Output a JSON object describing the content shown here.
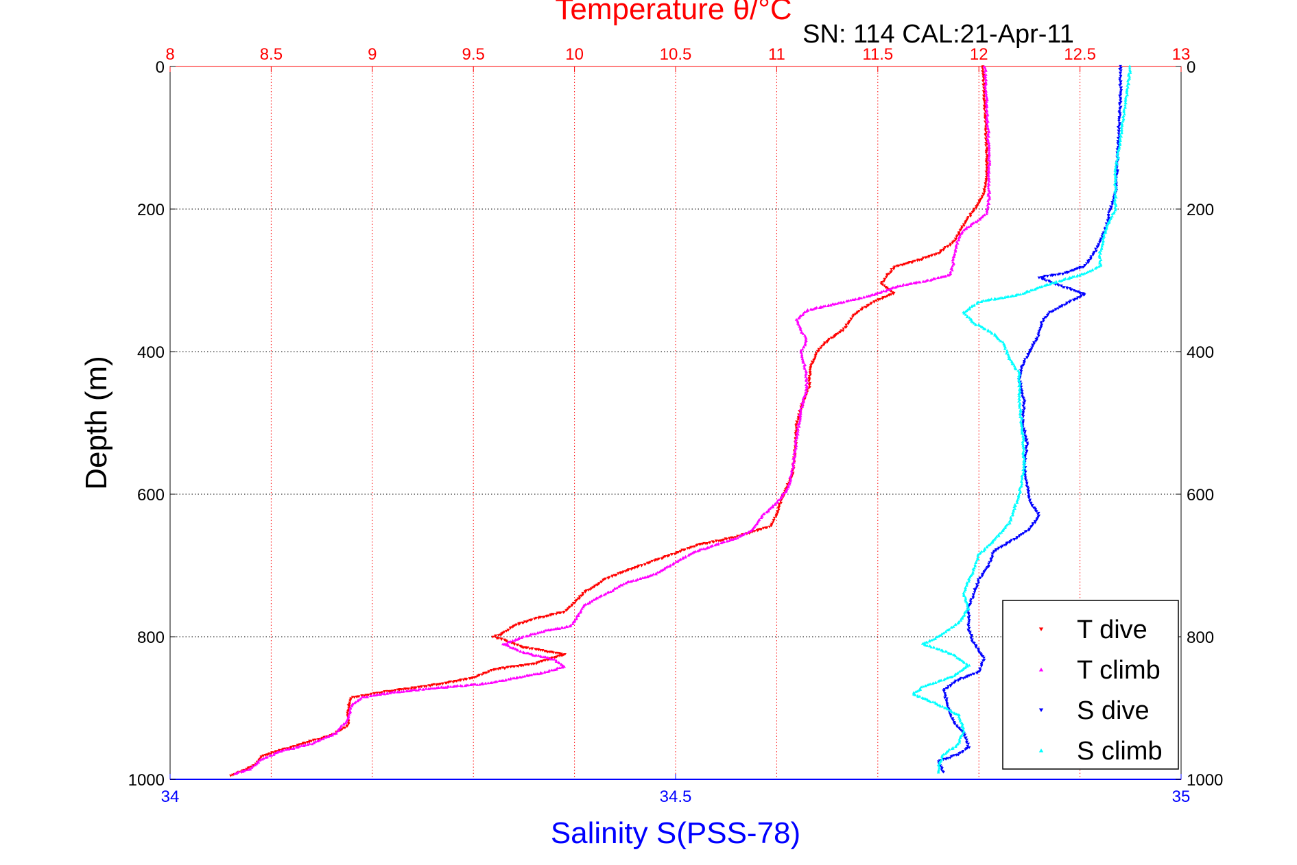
{
  "chart_data": {
    "type": "scatter",
    "title": "Temperature θ/°C",
    "subtitle": "SN: 114  CAL:21-Apr-11",
    "ylabel": "Depth (m)",
    "xlabel": "Salinity S(PSS-78)",
    "grid": true,
    "legend_position": "bottom-right",
    "y_axis": {
      "min": 0,
      "max": 1000,
      "reversed": true,
      "ticks": [
        0,
        200,
        400,
        600,
        800,
        1000
      ],
      "tick_labels": [
        "0",
        "200",
        "400",
        "600",
        "800",
        "1000"
      ]
    },
    "temperature_axis": {
      "position": "top",
      "min": 8,
      "max": 13,
      "color": "#ff0000",
      "ticks": [
        8,
        8.5,
        9,
        9.5,
        10,
        10.5,
        11,
        11.5,
        12,
        12.5,
        13
      ],
      "tick_labels": [
        "8",
        "8.5",
        "9",
        "9.5",
        "10",
        "10.5",
        "11",
        "11.5",
        "12",
        "12.5",
        "13"
      ]
    },
    "salinity_axis": {
      "position": "bottom",
      "min": 34,
      "max": 35,
      "color": "#0000ff",
      "ticks": [
        34,
        34.5,
        35
      ],
      "tick_labels": [
        "34",
        "34.5",
        "35"
      ]
    },
    "series": [
      {
        "name": "T dive",
        "axis": "temperature",
        "color": "#ff0000",
        "marker": "triangle-down",
        "points": [
          [
            12.02,
            0
          ],
          [
            12.03,
            60
          ],
          [
            12.04,
            120
          ],
          [
            12.04,
            160
          ],
          [
            12.02,
            180
          ],
          [
            11.98,
            200
          ],
          [
            11.93,
            220
          ],
          [
            11.88,
            245
          ],
          [
            11.8,
            262
          ],
          [
            11.7,
            272
          ],
          [
            11.58,
            282
          ],
          [
            11.55,
            292
          ],
          [
            11.52,
            305
          ],
          [
            11.58,
            318
          ],
          [
            11.5,
            328
          ],
          [
            11.42,
            340
          ],
          [
            11.38,
            350
          ],
          [
            11.33,
            370
          ],
          [
            11.25,
            385
          ],
          [
            11.2,
            400
          ],
          [
            11.17,
            420
          ],
          [
            11.16,
            450
          ],
          [
            11.13,
            470
          ],
          [
            11.1,
            500
          ],
          [
            11.09,
            540
          ],
          [
            11.08,
            570
          ],
          [
            11.05,
            590
          ],
          [
            11.02,
            610
          ],
          [
            11.0,
            630
          ],
          [
            10.97,
            645
          ],
          [
            10.8,
            660
          ],
          [
            10.6,
            672
          ],
          [
            10.45,
            688
          ],
          [
            10.25,
            708
          ],
          [
            10.15,
            720
          ],
          [
            10.05,
            738
          ],
          [
            10.0,
            752
          ],
          [
            9.95,
            765
          ],
          [
            9.8,
            775
          ],
          [
            9.7,
            785
          ],
          [
            9.65,
            795
          ],
          [
            9.6,
            800
          ],
          [
            9.75,
            815
          ],
          [
            9.95,
            825
          ],
          [
            9.8,
            838
          ],
          [
            9.75,
            840
          ],
          [
            9.6,
            846
          ],
          [
            9.5,
            858
          ],
          [
            9.3,
            868
          ],
          [
            9.05,
            878
          ],
          [
            8.9,
            885
          ],
          [
            8.88,
            900
          ],
          [
            8.88,
            925
          ],
          [
            8.8,
            938
          ],
          [
            8.6,
            955
          ],
          [
            8.45,
            968
          ],
          [
            8.42,
            980
          ],
          [
            8.35,
            990
          ],
          [
            8.3,
            995
          ]
        ]
      },
      {
        "name": "T climb",
        "axis": "temperature",
        "color": "#ff00ff",
        "marker": "triangle-up",
        "points": [
          [
            12.03,
            0
          ],
          [
            12.04,
            60
          ],
          [
            12.05,
            120
          ],
          [
            12.05,
            185
          ],
          [
            12.04,
            205
          ],
          [
            12.0,
            215
          ],
          [
            11.93,
            228
          ],
          [
            11.9,
            240
          ],
          [
            11.88,
            260
          ],
          [
            11.87,
            280
          ],
          [
            11.86,
            292
          ],
          [
            11.75,
            300
          ],
          [
            11.6,
            308
          ],
          [
            11.5,
            318
          ],
          [
            11.4,
            326
          ],
          [
            11.3,
            332
          ],
          [
            11.15,
            342
          ],
          [
            11.1,
            355
          ],
          [
            11.12,
            370
          ],
          [
            11.15,
            385
          ],
          [
            11.12,
            400
          ],
          [
            11.14,
            420
          ],
          [
            11.15,
            450
          ],
          [
            11.12,
            480
          ],
          [
            11.1,
            520
          ],
          [
            11.08,
            560
          ],
          [
            11.06,
            590
          ],
          [
            11.0,
            612
          ],
          [
            10.93,
            630
          ],
          [
            10.88,
            650
          ],
          [
            10.8,
            662
          ],
          [
            10.6,
            680
          ],
          [
            10.5,
            695
          ],
          [
            10.4,
            712
          ],
          [
            10.25,
            725
          ],
          [
            10.15,
            740
          ],
          [
            10.05,
            755
          ],
          [
            10.02,
            770
          ],
          [
            9.98,
            785
          ],
          [
            9.85,
            792
          ],
          [
            9.75,
            800
          ],
          [
            9.65,
            810
          ],
          [
            9.75,
            822
          ],
          [
            9.9,
            832
          ],
          [
            9.95,
            842
          ],
          [
            9.85,
            850
          ],
          [
            9.7,
            858
          ],
          [
            9.55,
            866
          ],
          [
            9.3,
            872
          ],
          [
            9.1,
            878
          ],
          [
            8.95,
            885
          ],
          [
            8.9,
            895
          ],
          [
            8.88,
            915
          ],
          [
            8.82,
            935
          ],
          [
            8.7,
            950
          ],
          [
            8.55,
            960
          ],
          [
            8.45,
            972
          ],
          [
            8.4,
            985
          ],
          [
            8.32,
            992
          ]
        ]
      },
      {
        "name": "S dive",
        "axis": "salinity",
        "color": "#0000ff",
        "marker": "triangle-down",
        "points": [
          [
            34.94,
            0
          ],
          [
            34.94,
            50
          ],
          [
            34.938,
            100
          ],
          [
            34.937,
            140
          ],
          [
            34.935,
            180
          ],
          [
            34.93,
            200
          ],
          [
            34.925,
            230
          ],
          [
            34.915,
            260
          ],
          [
            34.905,
            280
          ],
          [
            34.885,
            290
          ],
          [
            34.86,
            296
          ],
          [
            34.875,
            305
          ],
          [
            34.905,
            320
          ],
          [
            34.89,
            330
          ],
          [
            34.87,
            345
          ],
          [
            34.862,
            360
          ],
          [
            34.858,
            380
          ],
          [
            34.85,
            400
          ],
          [
            34.843,
            420
          ],
          [
            34.84,
            440
          ],
          [
            34.845,
            470
          ],
          [
            34.843,
            500
          ],
          [
            34.848,
            530
          ],
          [
            34.845,
            560
          ],
          [
            34.848,
            590
          ],
          [
            34.85,
            610
          ],
          [
            34.86,
            630
          ],
          [
            34.85,
            650
          ],
          [
            34.833,
            665
          ],
          [
            34.815,
            680
          ],
          [
            34.81,
            700
          ],
          [
            34.8,
            720
          ],
          [
            34.795,
            740
          ],
          [
            34.79,
            760
          ],
          [
            34.79,
            790
          ],
          [
            34.795,
            810
          ],
          [
            34.805,
            830
          ],
          [
            34.8,
            850
          ],
          [
            34.78,
            860
          ],
          [
            34.765,
            875
          ],
          [
            34.77,
            900
          ],
          [
            34.775,
            920
          ],
          [
            34.785,
            935
          ],
          [
            34.79,
            955
          ],
          [
            34.78,
            965
          ],
          [
            34.76,
            975
          ],
          [
            34.765,
            990
          ]
        ]
      },
      {
        "name": "S climb",
        "axis": "salinity",
        "color": "#00ffff",
        "marker": "triangle-up",
        "points": [
          [
            34.95,
            0
          ],
          [
            34.945,
            50
          ],
          [
            34.94,
            100
          ],
          [
            34.935,
            150
          ],
          [
            34.935,
            200
          ],
          [
            34.925,
            230
          ],
          [
            34.92,
            260
          ],
          [
            34.92,
            280
          ],
          [
            34.905,
            290
          ],
          [
            34.87,
            305
          ],
          [
            34.84,
            320
          ],
          [
            34.8,
            330
          ],
          [
            34.785,
            345
          ],
          [
            34.795,
            360
          ],
          [
            34.815,
            375
          ],
          [
            34.825,
            390
          ],
          [
            34.83,
            410
          ],
          [
            34.84,
            430
          ],
          [
            34.84,
            470
          ],
          [
            34.843,
            510
          ],
          [
            34.845,
            560
          ],
          [
            34.84,
            600
          ],
          [
            34.835,
            620
          ],
          [
            34.83,
            640
          ],
          [
            34.818,
            660
          ],
          [
            34.8,
            685
          ],
          [
            34.795,
            705
          ],
          [
            34.79,
            720
          ],
          [
            34.785,
            740
          ],
          [
            34.79,
            760
          ],
          [
            34.78,
            780
          ],
          [
            34.76,
            800
          ],
          [
            34.745,
            810
          ],
          [
            34.775,
            825
          ],
          [
            34.79,
            840
          ],
          [
            34.775,
            855
          ],
          [
            34.745,
            870
          ],
          [
            34.735,
            880
          ],
          [
            34.76,
            895
          ],
          [
            34.78,
            910
          ],
          [
            34.785,
            930
          ],
          [
            34.78,
            950
          ],
          [
            34.765,
            965
          ],
          [
            34.76,
            980
          ],
          [
            34.76,
            990
          ]
        ]
      }
    ]
  }
}
